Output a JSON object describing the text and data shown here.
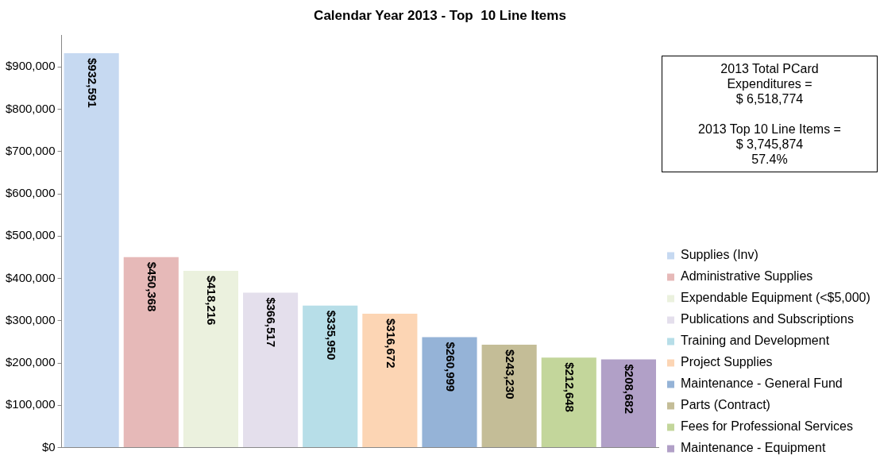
{
  "chart_data": {
    "type": "bar",
    "title": "Calendar Year 2013 - Top  10 Line Items",
    "categories": [
      null,
      null,
      null,
      null,
      null,
      null,
      null,
      null,
      null,
      null
    ],
    "series": [
      {
        "name": "Supplies (Inv)",
        "color": "#c6d9f1",
        "values": [
          932591,
          null,
          null,
          null,
          null,
          null,
          null,
          null,
          null,
          null
        ],
        "value_labels": [
          "$932,591",
          null,
          null,
          null,
          null,
          null,
          null,
          null,
          null,
          null
        ]
      },
      {
        "name": "Administrative Supplies",
        "color": "#e6b9b8",
        "values": [
          null,
          450368,
          null,
          null,
          null,
          null,
          null,
          null,
          null,
          null
        ],
        "value_labels": [
          null,
          "$450,368",
          null,
          null,
          null,
          null,
          null,
          null,
          null,
          null
        ]
      },
      {
        "name": "Expendable Equipment (<$5,000)",
        "color": "#ebf1de",
        "values": [
          null,
          null,
          418216,
          null,
          null,
          null,
          null,
          null,
          null,
          null
        ],
        "value_labels": [
          null,
          null,
          "$418,216",
          null,
          null,
          null,
          null,
          null,
          null,
          null
        ]
      },
      {
        "name": "Publications and Subscriptions",
        "color": "#e4dfec",
        "values": [
          null,
          null,
          null,
          366517,
          null,
          null,
          null,
          null,
          null,
          null
        ],
        "value_labels": [
          null,
          null,
          null,
          "$366,517",
          null,
          null,
          null,
          null,
          null,
          null
        ]
      },
      {
        "name": "Training and Development",
        "color": "#b7dee8",
        "values": [
          null,
          null,
          null,
          null,
          335950,
          null,
          null,
          null,
          null,
          null
        ],
        "value_labels": [
          null,
          null,
          null,
          null,
          "$335,950",
          null,
          null,
          null,
          null,
          null
        ]
      },
      {
        "name": "Project Supplies",
        "color": "#fcd5b4",
        "values": [
          null,
          null,
          null,
          null,
          null,
          316672,
          null,
          null,
          null,
          null
        ],
        "value_labels": [
          null,
          null,
          null,
          null,
          null,
          "$316,672",
          null,
          null,
          null,
          null
        ]
      },
      {
        "name": "Maintenance - General Fund",
        "color": "#95b3d7",
        "values": [
          null,
          null,
          null,
          null,
          null,
          null,
          260999,
          null,
          null,
          null
        ],
        "value_labels": [
          null,
          null,
          null,
          null,
          null,
          null,
          "$260,999",
          null,
          null,
          null
        ]
      },
      {
        "name": "Parts (Contract)",
        "color": "#c4bd97",
        "values": [
          null,
          null,
          null,
          null,
          null,
          null,
          null,
          243230,
          null,
          null
        ],
        "value_labels": [
          null,
          null,
          null,
          null,
          null,
          null,
          null,
          "$243,230",
          null,
          null
        ]
      },
      {
        "name": "Fees for Professional Services",
        "color": "#c3d69b",
        "values": [
          null,
          null,
          null,
          null,
          null,
          null,
          null,
          null,
          212648,
          null
        ],
        "value_labels": [
          null,
          null,
          null,
          null,
          null,
          null,
          null,
          null,
          "$212,648",
          null
        ]
      },
      {
        "name": "Maintenance - Equipment",
        "color": "#b1a0c7",
        "values": [
          null,
          null,
          null,
          null,
          null,
          null,
          null,
          null,
          null,
          208682
        ],
        "value_labels": [
          null,
          null,
          null,
          null,
          null,
          null,
          null,
          null,
          null,
          "$208,682"
        ]
      }
    ],
    "ylim": [
      0,
      975000
    ],
    "yticks": [
      {
        "value": 0,
        "label": "$0"
      },
      {
        "value": 100000,
        "label": "$100,000"
      },
      {
        "value": 200000,
        "label": "$200,000"
      },
      {
        "value": 300000,
        "label": "$300,000"
      },
      {
        "value": 400000,
        "label": "$400,000"
      },
      {
        "value": 500000,
        "label": "$500,000"
      },
      {
        "value": 600000,
        "label": "$600,000"
      },
      {
        "value": 700000,
        "label": "$700,000"
      },
      {
        "value": 800000,
        "label": "$800,000"
      },
      {
        "value": 900000,
        "label": "$900,000"
      }
    ],
    "grid": false,
    "legend": "bottom right",
    "annotations": [
      "2013 Total PCard\nExpenditures =\n$ 6,518,774\n\n2013 Top 10 Line Items =\n$ 3,745,874\n57.4%"
    ]
  }
}
